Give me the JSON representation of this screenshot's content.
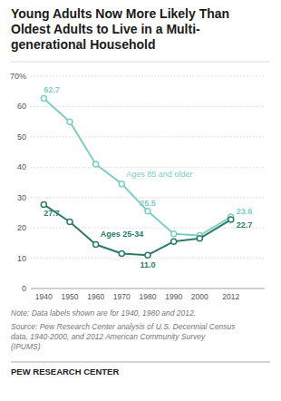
{
  "chart_data": {
    "type": "line",
    "title": "Young Adults Now More Likely Than\nOldest Adults to Live in a Multi-\ngenerational Household",
    "x": [
      1940,
      1950,
      1960,
      1970,
      1980,
      1990,
      2000,
      2012
    ],
    "xlim": [
      1935,
      2025
    ],
    "xticks": [
      1940,
      1950,
      1960,
      1970,
      1980,
      1990,
      2000,
      2012
    ],
    "ylim": [
      0,
      70
    ],
    "yticks": [
      0,
      10,
      20,
      30,
      40,
      50,
      60,
      {
        "value": 70,
        "label": "70%"
      }
    ],
    "grid": true,
    "data_labels": true,
    "marker": "circle",
    "series": [
      {
        "name": "Ages 85 and older",
        "color": "#7dcfc4",
        "values": [
          62.7,
          55.0,
          41.0,
          34.5,
          25.5,
          18.0,
          17.5,
          23.6
        ],
        "value_labels": [
          "62.7",
          null,
          null,
          null,
          "25.5",
          null,
          null,
          "23.6"
        ]
      },
      {
        "name": "Ages 25-34",
        "color": "#2d7a6b",
        "values": [
          27.7,
          22.0,
          14.5,
          11.5,
          11.0,
          15.5,
          16.5,
          22.7
        ],
        "value_labels": [
          "27.7",
          null,
          null,
          null,
          "11.0",
          null,
          null,
          "22.7"
        ]
      }
    ],
    "note": "Note: Data labels shown are for 1940, 1980 and 2012.",
    "source": "Source: Pew Research Center analysis of U.S. Decennial Census\ndata, 1940-2000, and 2012 American Community Survey\n(IPUMS)",
    "footer": "PEW RESEARCH CENTER"
  }
}
